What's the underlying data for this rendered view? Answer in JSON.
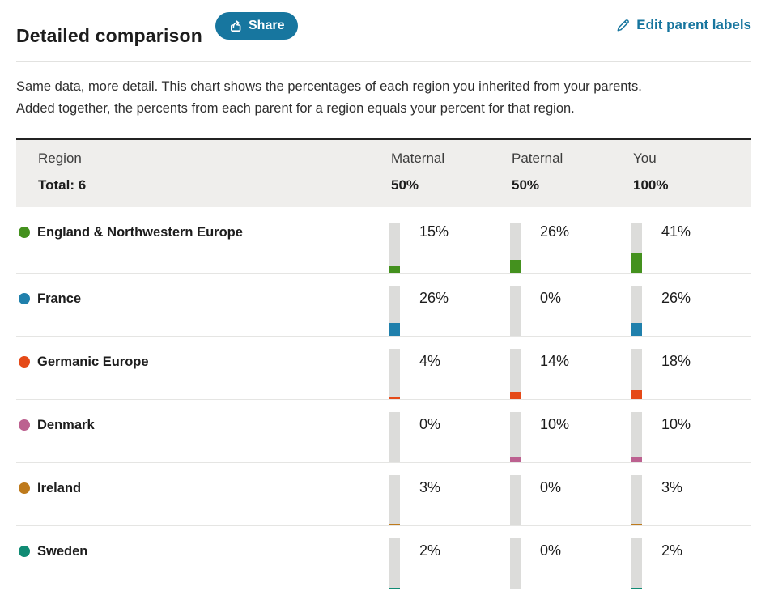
{
  "header": {
    "title": "Detailed comparison",
    "share_button": "Share",
    "edit_parent_labels": "Edit parent labels"
  },
  "description": {
    "line1": "Same data, more detail. This chart shows the percentages of each region you inherited from your parents.",
    "line2": "Added together, the percents from each parent for a region equals your percent for that region."
  },
  "table": {
    "columns": {
      "region": "Region",
      "maternal": "Maternal",
      "paternal": "Paternal",
      "you": "You"
    },
    "totals": {
      "region": "Total: 6",
      "maternal": "50%",
      "paternal": "50%",
      "you": "100%"
    }
  },
  "rows": [
    {
      "region": "England & Northwestern Europe",
      "color": "#44911e",
      "maternal": {
        "label": "15%",
        "pct": 15
      },
      "paternal": {
        "label": "26%",
        "pct": 26
      },
      "you": {
        "label": "41%",
        "pct": 41
      }
    },
    {
      "region": "France",
      "color": "#2080ac",
      "maternal": {
        "label": "26%",
        "pct": 26
      },
      "paternal": {
        "label": "0%",
        "pct": 0
      },
      "you": {
        "label": "26%",
        "pct": 26
      }
    },
    {
      "region": "Germanic Europe",
      "color": "#e54a18",
      "maternal": {
        "label": "4%",
        "pct": 4
      },
      "paternal": {
        "label": "14%",
        "pct": 14
      },
      "you": {
        "label": "18%",
        "pct": 18
      }
    },
    {
      "region": "Denmark",
      "color": "#bc6190",
      "maternal": {
        "label": "0%",
        "pct": 0
      },
      "paternal": {
        "label": "10%",
        "pct": 10
      },
      "you": {
        "label": "10%",
        "pct": 10
      }
    },
    {
      "region": "Ireland",
      "color": "#be7a1c",
      "maternal": {
        "label": "3%",
        "pct": 3
      },
      "paternal": {
        "label": "0%",
        "pct": 0
      },
      "you": {
        "label": "3%",
        "pct": 3
      }
    },
    {
      "region": "Sweden",
      "color": "#108b74",
      "maternal": {
        "label": "2%",
        "pct": 2
      },
      "paternal": {
        "label": "0%",
        "pct": 0
      },
      "you": {
        "label": "2%",
        "pct": 2
      }
    }
  ],
  "chart_data": {
    "type": "bar",
    "title": "Detailed comparison",
    "total_regions": 6,
    "categories": [
      "England & Northwestern Europe",
      "France",
      "Germanic Europe",
      "Denmark",
      "Ireland",
      "Sweden"
    ],
    "series": [
      {
        "name": "Maternal",
        "total": "50%",
        "values": [
          15,
          26,
          4,
          0,
          3,
          2
        ]
      },
      {
        "name": "Paternal",
        "total": "50%",
        "values": [
          26,
          0,
          14,
          10,
          0,
          0
        ]
      },
      {
        "name": "You",
        "total": "100%",
        "values": [
          41,
          26,
          18,
          10,
          3,
          2
        ]
      }
    ],
    "unit": "%",
    "ylim": [
      0,
      100
    ],
    "bar_colors": [
      "#44911e",
      "#2080ac",
      "#e54a18",
      "#bc6190",
      "#be7a1c",
      "#108b74"
    ],
    "track_color": "#dcdcda"
  },
  "colors": {
    "accent_teal": "#17769f",
    "link_teal": "#16759e",
    "header_band": "#efeeec",
    "bar_track": "#dcdcda",
    "row_border": "#e5e5e3",
    "text_dark": "#1d1d1d"
  }
}
